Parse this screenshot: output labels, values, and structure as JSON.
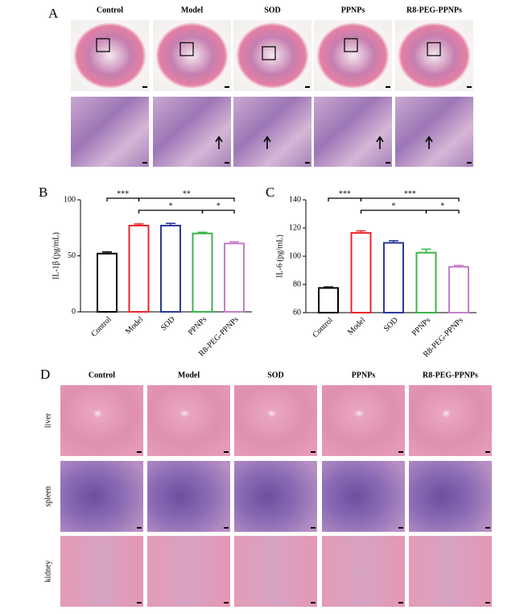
{
  "panel_a": {
    "label": "A",
    "columns": [
      "Control",
      "Model",
      "SOD",
      "PPNPs",
      "R8-PEG-PPNPs"
    ]
  },
  "chart_data": [
    {
      "type": "bar",
      "label": "B",
      "ylabel": "IL-1β (pg/mL)",
      "categories": [
        "Control",
        "Model",
        "SOD",
        "PPNPs",
        "R8-PEG-PPNPs"
      ],
      "values": [
        52,
        77,
        77,
        70,
        61
      ],
      "errors": [
        1.5,
        1.5,
        2,
        1,
        1.5
      ],
      "colors": [
        "#000000",
        "#e8262b",
        "#2a3a9c",
        "#3cb44a",
        "#c77ec9"
      ],
      "ylim": [
        0,
        100
      ],
      "yticks": [
        0,
        50,
        100
      ],
      "annotations": [
        {
          "text": "***",
          "between": [
            "Control",
            "Model"
          ]
        },
        {
          "text": "**",
          "between": [
            "Model",
            "R8-PEG-PPNPs"
          ]
        },
        {
          "text": "*",
          "between": [
            "Model",
            "PPNPs"
          ]
        },
        {
          "text": "*",
          "between": [
            "PPNPs",
            "R8-PEG-PPNPs"
          ]
        }
      ]
    },
    {
      "type": "bar",
      "label": "C",
      "ylabel": "IL-6 (pg/mL)",
      "categories": [
        "Control",
        "Model",
        "SOD",
        "PPNPs",
        "R8-PEG-PPNPs"
      ],
      "values": [
        77.5,
        116.5,
        109.5,
        102.5,
        92.5
      ],
      "errors": [
        0.7,
        1.5,
        1.5,
        2.5,
        1
      ],
      "colors": [
        "#000000",
        "#e8262b",
        "#2a3a9c",
        "#3cb44a",
        "#c77ec9"
      ],
      "ylim": [
        60,
        140
      ],
      "yticks": [
        60,
        80,
        100,
        120,
        140
      ],
      "annotations": [
        {
          "text": "***",
          "between": [
            "Control",
            "Model"
          ]
        },
        {
          "text": "***",
          "between": [
            "Model",
            "R8-PEG-PPNPs"
          ]
        },
        {
          "text": "*",
          "between": [
            "Model",
            "PPNPs"
          ]
        },
        {
          "text": "*",
          "between": [
            "PPNPs",
            "R8-PEG-PPNPs"
          ]
        }
      ]
    }
  ],
  "panel_d": {
    "label": "D",
    "columns": [
      "Control",
      "Model",
      "SOD",
      "PPNPs",
      "R8-PEG-PPNPs"
    ],
    "rows": [
      "liver",
      "spleen",
      "kidney"
    ]
  }
}
